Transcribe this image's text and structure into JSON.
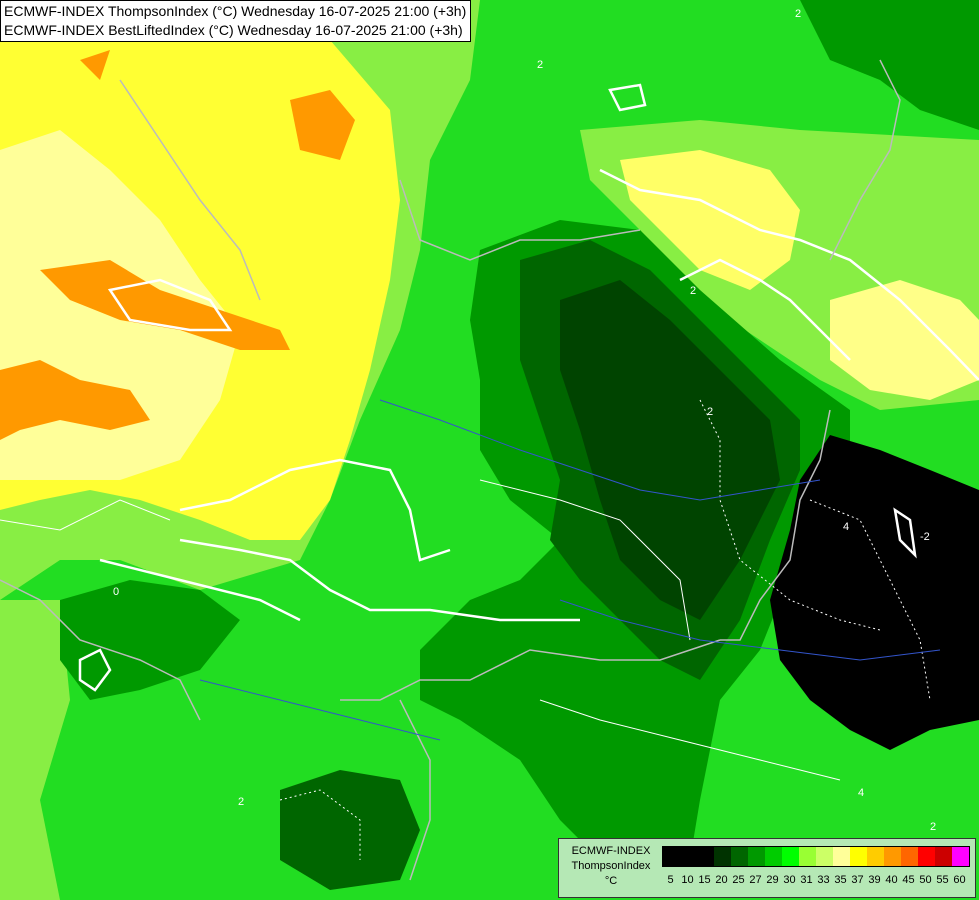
{
  "header": {
    "line1": "ECMWF-INDEX ThompsonIndex (°C) Wednesday 16-07-2025 21:00 (+3h)",
    "line2": "ECMWF-INDEX BestLiftedIndex (°C) Wednesday 16-07-2025 21:00 (+3h)"
  },
  "legend": {
    "title": "ECMWF-INDEX",
    "subtitle": "ThompsonIndex",
    "unit": "°C",
    "colors": [
      "#000000",
      "#000000",
      "#000000",
      "#003300",
      "#006600",
      "#009900",
      "#00cc00",
      "#00ff00",
      "#99ff33",
      "#ccff66",
      "#ffff99",
      "#ffff00",
      "#ffcc00",
      "#ff9900",
      "#ff6600",
      "#ff0000",
      "#cc0000",
      "#ff00ff",
      "#cc00ff",
      "#9900ff",
      "#6600ff",
      "#0000ff"
    ],
    "ticks": [
      "5",
      "10",
      "15",
      "20",
      "25",
      "27",
      "29",
      "30",
      "31",
      "33",
      "35",
      "37",
      "39",
      "40",
      "45",
      "50",
      "55",
      "60"
    ]
  },
  "contour_labels": {
    "l1": "2",
    "l2": "2",
    "l3": "2",
    "l4": "4",
    "l5": "4",
    "l6": "2",
    "l7": "0",
    "l8": "-2",
    "l9": "2",
    "l10": "2"
  }
}
